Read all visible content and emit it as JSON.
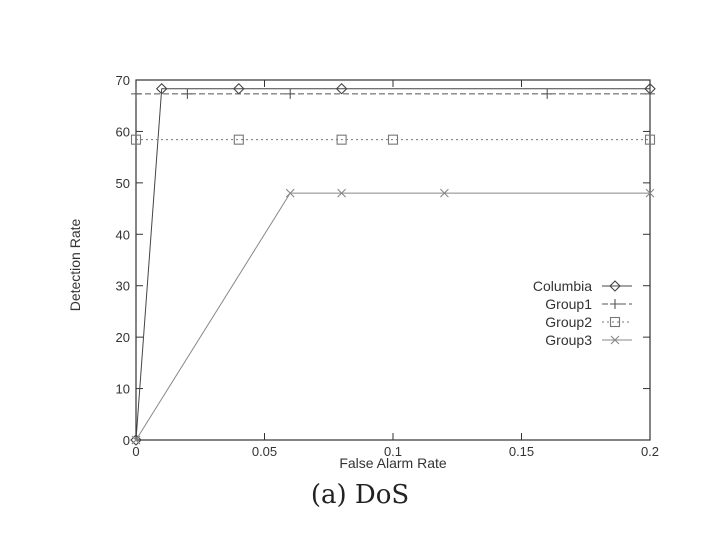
{
  "chart_data": {
    "type": "line",
    "xlabel": "False Alarm Rate",
    "ylabel": "Detection Rate",
    "xlim": [
      0,
      0.2
    ],
    "ylim": [
      0,
      70
    ],
    "xticks": [
      0,
      0.05,
      0.1,
      0.15,
      0.2
    ],
    "xtick_labels": [
      "0",
      "0.05",
      "0.1",
      "0.15",
      "0.2"
    ],
    "yticks": [
      0,
      10,
      20,
      30,
      40,
      50,
      60,
      70
    ],
    "ytick_labels": [
      "0",
      "10",
      "20",
      "30",
      "40",
      "50",
      "60",
      "70"
    ],
    "grid": false,
    "legend_position": "right",
    "series": [
      {
        "name": "Columbia",
        "marker": "diamond",
        "dash": "solid",
        "x": [
          0,
          0.01,
          0.04,
          0.08,
          0.2
        ],
        "y": [
          0,
          68.3,
          68.3,
          68.3,
          68.3
        ]
      },
      {
        "name": "Group1",
        "marker": "plus",
        "dash": "dashed",
        "x": [
          0,
          0.02,
          0.06,
          0.16,
          0.2
        ],
        "y": [
          67.3,
          67.3,
          67.3,
          67.3,
          67.3
        ]
      },
      {
        "name": "Group2",
        "marker": "square",
        "dash": "dotted",
        "x": [
          0,
          0.04,
          0.08,
          0.1,
          0.2
        ],
        "y": [
          58.4,
          58.4,
          58.4,
          58.4,
          58.4
        ]
      },
      {
        "name": "Group3",
        "marker": "cross",
        "dash": "solid",
        "x": [
          0,
          0.06,
          0.08,
          0.12,
          0.2
        ],
        "y": [
          0,
          48,
          48,
          48,
          48
        ]
      }
    ]
  },
  "caption": "(a) DoS"
}
